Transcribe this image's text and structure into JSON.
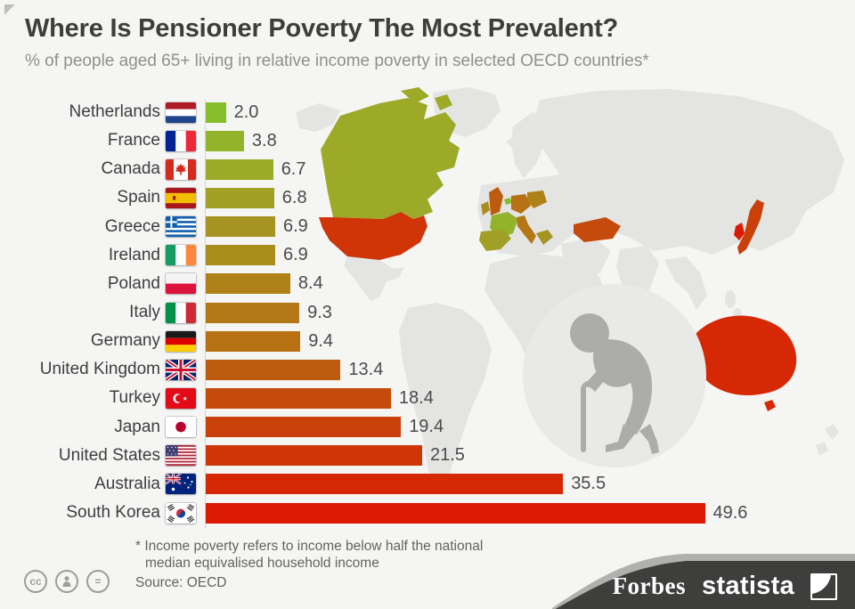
{
  "title": "Where Is Pensioner Poverty The Most Prevalent?",
  "subtitle": "% of people aged 65+ living in relative income poverty in selected OECD countries*",
  "chart_data": {
    "type": "bar",
    "orientation": "horizontal",
    "categories": [
      "Netherlands",
      "France",
      "Canada",
      "Spain",
      "Greece",
      "Ireland",
      "Poland",
      "Italy",
      "Germany",
      "United Kingdom",
      "Turkey",
      "Japan",
      "United States",
      "Australia",
      "South Korea"
    ],
    "values": [
      2.0,
      3.8,
      6.7,
      6.8,
      6.9,
      6.9,
      8.4,
      9.3,
      9.4,
      13.4,
      18.4,
      19.4,
      21.5,
      35.5,
      49.6
    ],
    "value_labels": [
      "2.0",
      "3.8",
      "6.7",
      "6.8",
      "6.9",
      "6.9",
      "8.4",
      "9.3",
      "9.4",
      "13.4",
      "18.4",
      "19.4",
      "21.5",
      "35.5",
      "49.6"
    ],
    "flags": [
      "nl",
      "fr",
      "ca",
      "es",
      "gr",
      "ie",
      "pl",
      "it",
      "de",
      "gb",
      "tr",
      "jp",
      "us",
      "au",
      "kr"
    ],
    "bar_colors": [
      "#87be2c",
      "#92b32a",
      "#9caa28",
      "#a19f25",
      "#a59322",
      "#a98e1e",
      "#ae8119",
      "#b37815",
      "#b77012",
      "#bd5c0e",
      "#c44b0b",
      "#c94109",
      "#d03507",
      "#d62805",
      "#dc1a03"
    ],
    "xlim": [
      0,
      55
    ],
    "unit": "%",
    "grid": false,
    "legend": false,
    "value_label_position": "end-of-bar"
  },
  "map": {
    "land_color": "#e4e4e3",
    "background": "#f5f5f4",
    "elder_circle_color": "#e9e9e8",
    "elder_silhouette_color": "#acacab"
  },
  "footnote": {
    "line1": "* Income poverty refers to income below half the national",
    "line2": "median equivalised household income"
  },
  "source": "Source: OECD",
  "branding": {
    "publisher": "Forbes",
    "provider": "statista",
    "bar_color": "#3e3e3d",
    "band_color": "#b0b0af"
  },
  "license": {
    "cc": "cc",
    "nd": "="
  }
}
